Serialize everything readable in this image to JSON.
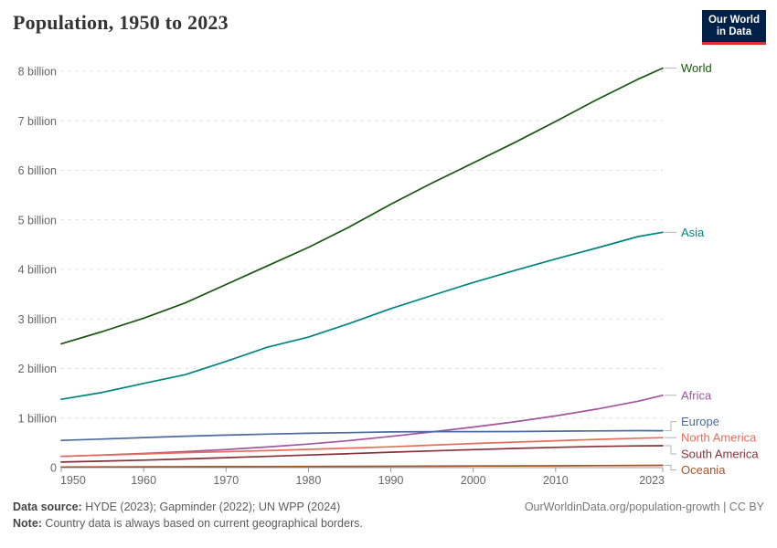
{
  "header": {
    "title": "Population, 1950 to 2023",
    "logo": {
      "line1": "Our World",
      "line2": "in Data",
      "bg_color": "#002147",
      "accent_color": "#E0301F"
    }
  },
  "chart_data": {
    "type": "line",
    "title": "Population, 1950 to 2023",
    "xlabel": "",
    "ylabel": "",
    "unit": "billion people",
    "xlim": [
      1950,
      2023
    ],
    "ylim": [
      0,
      8.3
    ],
    "grid": "horizontal dashed",
    "legend_position": "right-end-labels",
    "yticks": [
      {
        "value": 0,
        "label": "0"
      },
      {
        "value": 1,
        "label": "1 billion"
      },
      {
        "value": 2,
        "label": "2 billion"
      },
      {
        "value": 3,
        "label": "3 billion"
      },
      {
        "value": 4,
        "label": "4 billion"
      },
      {
        "value": 5,
        "label": "5 billion"
      },
      {
        "value": 6,
        "label": "6 billion"
      },
      {
        "value": 7,
        "label": "7 billion"
      },
      {
        "value": 8,
        "label": "8 billion"
      }
    ],
    "xticks": [
      1950,
      1960,
      1970,
      1980,
      1990,
      2000,
      2010,
      2023
    ],
    "x": [
      1950,
      1955,
      1960,
      1965,
      1970,
      1975,
      1980,
      1985,
      1990,
      1995,
      2000,
      2005,
      2010,
      2015,
      2020,
      2023
    ],
    "series": [
      {
        "name": "World",
        "color": "#18570F",
        "values": [
          2.499,
          2.746,
          3.015,
          3.322,
          3.695,
          4.07,
          4.444,
          4.861,
          5.316,
          5.743,
          6.149,
          6.558,
          6.986,
          7.426,
          7.84,
          8.062
        ]
      },
      {
        "name": "Asia",
        "color": "#00847E",
        "values": [
          1.379,
          1.518,
          1.7,
          1.875,
          2.144,
          2.43,
          2.635,
          2.911,
          3.21,
          3.475,
          3.736,
          3.978,
          4.211,
          4.433,
          4.664,
          4.751
        ]
      },
      {
        "name": "Africa",
        "color": "#A2559C",
        "values": [
          0.227,
          0.254,
          0.285,
          0.322,
          0.365,
          0.416,
          0.476,
          0.545,
          0.63,
          0.72,
          0.818,
          0.924,
          1.044,
          1.182,
          1.341,
          1.46
        ]
      },
      {
        "name": "Europe",
        "color": "#4C6A9C",
        "values": [
          0.55,
          0.577,
          0.606,
          0.635,
          0.657,
          0.677,
          0.694,
          0.706,
          0.721,
          0.727,
          0.726,
          0.729,
          0.736,
          0.741,
          0.746,
          0.744
        ]
      },
      {
        "name": "North America",
        "color": "#E56E5A",
        "values": [
          0.227,
          0.252,
          0.277,
          0.302,
          0.322,
          0.343,
          0.368,
          0.394,
          0.421,
          0.453,
          0.486,
          0.514,
          0.542,
          0.57,
          0.594,
          0.604
        ]
      },
      {
        "name": "South America",
        "color": "#883039",
        "values": [
          0.113,
          0.131,
          0.152,
          0.175,
          0.2,
          0.227,
          0.254,
          0.282,
          0.311,
          0.338,
          0.364,
          0.388,
          0.409,
          0.427,
          0.439,
          0.442
        ]
      },
      {
        "name": "Oceania",
        "color": "#A2552A",
        "values": [
          0.013,
          0.0145,
          0.0162,
          0.0183,
          0.0203,
          0.0219,
          0.0236,
          0.0256,
          0.0279,
          0.0302,
          0.0324,
          0.0349,
          0.0377,
          0.0407,
          0.0438,
          0.0457
        ]
      }
    ]
  },
  "footer": {
    "source_label": "Data source:",
    "source_text": " HYDE (2023); Gapminder (2022); UN WPP (2024)",
    "note_label": "Note:",
    "note_text": " Country data is always based on current geographical borders.",
    "credit": "OurWorldinData.org/population-growth | CC BY"
  }
}
